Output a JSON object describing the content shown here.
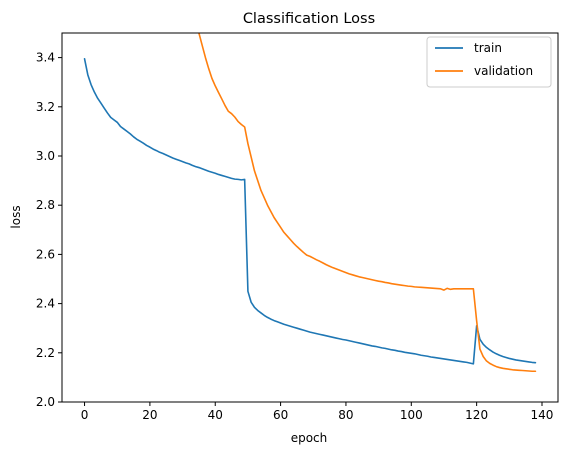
{
  "chart_data": {
    "type": "line",
    "title": "Classification Loss",
    "xlabel": "epoch",
    "ylabel": "loss",
    "xlim": [
      -6.9,
      144.9
    ],
    "ylim": [
      2.0,
      3.5
    ],
    "xticks": [
      0,
      20,
      40,
      60,
      80,
      100,
      120,
      140
    ],
    "xtick_labels": [
      "0",
      "20",
      "40",
      "60",
      "80",
      "100",
      "120",
      "140"
    ],
    "yticks": [
      2.0,
      2.2,
      2.4,
      2.6,
      2.8,
      3.0,
      3.2,
      3.4
    ],
    "ytick_labels": [
      "2.0",
      "2.2",
      "2.4",
      "2.6",
      "2.8",
      "3.0",
      "3.2",
      "3.4"
    ],
    "grid": false,
    "legend_position": "top-right",
    "series": [
      {
        "name": "train",
        "color": "#1f77b4",
        "points": [
          [
            0,
            3.395
          ],
          [
            1,
            3.33
          ],
          [
            2,
            3.29
          ],
          [
            3,
            3.26
          ],
          [
            4,
            3.235
          ],
          [
            5,
            3.215
          ],
          [
            6,
            3.195
          ],
          [
            7,
            3.175
          ],
          [
            8,
            3.157
          ],
          [
            9,
            3.147
          ],
          [
            10,
            3.137
          ],
          [
            11,
            3.12
          ],
          [
            12,
            3.11
          ],
          [
            13,
            3.1
          ],
          [
            14,
            3.09
          ],
          [
            15,
            3.078
          ],
          [
            16,
            3.068
          ],
          [
            17,
            3.06
          ],
          [
            18,
            3.052
          ],
          [
            19,
            3.043
          ],
          [
            20,
            3.036
          ],
          [
            21,
            3.028
          ],
          [
            22,
            3.022
          ],
          [
            23,
            3.015
          ],
          [
            24,
            3.01
          ],
          [
            25,
            3.004
          ],
          [
            26,
            2.998
          ],
          [
            27,
            2.992
          ],
          [
            28,
            2.987
          ],
          [
            29,
            2.982
          ],
          [
            30,
            2.977
          ],
          [
            31,
            2.972
          ],
          [
            32,
            2.968
          ],
          [
            33,
            2.962
          ],
          [
            34,
            2.957
          ],
          [
            35,
            2.953
          ],
          [
            36,
            2.948
          ],
          [
            37,
            2.943
          ],
          [
            38,
            2.938
          ],
          [
            39,
            2.934
          ],
          [
            40,
            2.93
          ],
          [
            41,
            2.925
          ],
          [
            42,
            2.921
          ],
          [
            43,
            2.917
          ],
          [
            44,
            2.913
          ],
          [
            45,
            2.909
          ],
          [
            46,
            2.906
          ],
          [
            47,
            2.905
          ],
          [
            48,
            2.903
          ],
          [
            49,
            2.905
          ],
          [
            50,
            2.45
          ],
          [
            51,
            2.405
          ],
          [
            52,
            2.385
          ],
          [
            53,
            2.372
          ],
          [
            54,
            2.362
          ],
          [
            55,
            2.352
          ],
          [
            56,
            2.344
          ],
          [
            57,
            2.337
          ],
          [
            58,
            2.331
          ],
          [
            59,
            2.326
          ],
          [
            60,
            2.321
          ],
          [
            61,
            2.316
          ],
          [
            62,
            2.312
          ],
          [
            63,
            2.308
          ],
          [
            64,
            2.304
          ],
          [
            65,
            2.3
          ],
          [
            66,
            2.296
          ],
          [
            67,
            2.292
          ],
          [
            68,
            2.288
          ],
          [
            69,
            2.284
          ],
          [
            70,
            2.281
          ],
          [
            71,
            2.278
          ],
          [
            72,
            2.275
          ],
          [
            73,
            2.272
          ],
          [
            74,
            2.269
          ],
          [
            75,
            2.266
          ],
          [
            76,
            2.263
          ],
          [
            77,
            2.26
          ],
          [
            78,
            2.257
          ],
          [
            79,
            2.254
          ],
          [
            80,
            2.252
          ],
          [
            81,
            2.249
          ],
          [
            82,
            2.246
          ],
          [
            83,
            2.243
          ],
          [
            84,
            2.24
          ],
          [
            85,
            2.237
          ],
          [
            86,
            2.234
          ],
          [
            87,
            2.231
          ],
          [
            88,
            2.228
          ],
          [
            89,
            2.226
          ],
          [
            90,
            2.223
          ],
          [
            91,
            2.22
          ],
          [
            92,
            2.218
          ],
          [
            93,
            2.215
          ],
          [
            94,
            2.212
          ],
          [
            95,
            2.21
          ],
          [
            96,
            2.207
          ],
          [
            97,
            2.205
          ],
          [
            98,
            2.202
          ],
          [
            99,
            2.2
          ],
          [
            100,
            2.198
          ],
          [
            101,
            2.196
          ],
          [
            102,
            2.193
          ],
          [
            103,
            2.19
          ],
          [
            104,
            2.188
          ],
          [
            105,
            2.186
          ],
          [
            106,
            2.183
          ],
          [
            107,
            2.181
          ],
          [
            108,
            2.179
          ],
          [
            109,
            2.177
          ],
          [
            110,
            2.175
          ],
          [
            111,
            2.173
          ],
          [
            112,
            2.171
          ],
          [
            113,
            2.169
          ],
          [
            114,
            2.167
          ],
          [
            115,
            2.165
          ],
          [
            116,
            2.163
          ],
          [
            117,
            2.161
          ],
          [
            118,
            2.158
          ],
          [
            119,
            2.155
          ],
          [
            120,
            2.31
          ],
          [
            121,
            2.255
          ],
          [
            122,
            2.235
          ],
          [
            123,
            2.222
          ],
          [
            124,
            2.212
          ],
          [
            125,
            2.203
          ],
          [
            126,
            2.196
          ],
          [
            127,
            2.19
          ],
          [
            128,
            2.185
          ],
          [
            129,
            2.181
          ],
          [
            130,
            2.177
          ],
          [
            131,
            2.174
          ],
          [
            132,
            2.171
          ],
          [
            133,
            2.169
          ],
          [
            134,
            2.167
          ],
          [
            135,
            2.165
          ],
          [
            136,
            2.163
          ],
          [
            137,
            2.161
          ],
          [
            138,
            2.16
          ]
        ]
      },
      {
        "name": "validation",
        "color": "#ff7f0e",
        "points": [
          [
            35,
            3.5
          ],
          [
            36,
            3.45
          ],
          [
            37,
            3.4
          ],
          [
            38,
            3.355
          ],
          [
            39,
            3.315
          ],
          [
            40,
            3.285
          ],
          [
            41,
            3.258
          ],
          [
            42,
            3.232
          ],
          [
            43,
            3.205
          ],
          [
            44,
            3.182
          ],
          [
            45,
            3.172
          ],
          [
            46,
            3.158
          ],
          [
            47,
            3.14
          ],
          [
            48,
            3.128
          ],
          [
            49,
            3.118
          ],
          [
            50,
            3.05
          ],
          [
            51,
            2.995
          ],
          [
            52,
            2.94
          ],
          [
            53,
            2.9
          ],
          [
            54,
            2.86
          ],
          [
            55,
            2.83
          ],
          [
            56,
            2.8
          ],
          [
            57,
            2.775
          ],
          [
            58,
            2.75
          ],
          [
            59,
            2.73
          ],
          [
            60,
            2.71
          ],
          [
            61,
            2.69
          ],
          [
            62,
            2.675
          ],
          [
            63,
            2.66
          ],
          [
            64,
            2.645
          ],
          [
            65,
            2.632
          ],
          [
            66,
            2.62
          ],
          [
            67,
            2.608
          ],
          [
            68,
            2.597
          ],
          [
            69,
            2.592
          ],
          [
            70,
            2.585
          ],
          [
            71,
            2.578
          ],
          [
            72,
            2.572
          ],
          [
            73,
            2.565
          ],
          [
            74,
            2.558
          ],
          [
            75,
            2.552
          ],
          [
            76,
            2.546
          ],
          [
            77,
            2.541
          ],
          [
            78,
            2.536
          ],
          [
            79,
            2.531
          ],
          [
            80,
            2.526
          ],
          [
            81,
            2.521
          ],
          [
            82,
            2.517
          ],
          [
            83,
            2.513
          ],
          [
            84,
            2.509
          ],
          [
            85,
            2.506
          ],
          [
            86,
            2.503
          ],
          [
            87,
            2.5
          ],
          [
            88,
            2.497
          ],
          [
            89,
            2.494
          ],
          [
            90,
            2.491
          ],
          [
            91,
            2.489
          ],
          [
            92,
            2.486
          ],
          [
            93,
            2.484
          ],
          [
            94,
            2.481
          ],
          [
            95,
            2.479
          ],
          [
            96,
            2.477
          ],
          [
            97,
            2.475
          ],
          [
            98,
            2.473
          ],
          [
            99,
            2.471
          ],
          [
            100,
            2.47
          ],
          [
            101,
            2.468
          ],
          [
            102,
            2.467
          ],
          [
            103,
            2.466
          ],
          [
            104,
            2.465
          ],
          [
            105,
            2.464
          ],
          [
            106,
            2.463
          ],
          [
            107,
            2.462
          ],
          [
            108,
            2.461
          ],
          [
            109,
            2.46
          ],
          [
            110,
            2.455
          ],
          [
            111,
            2.462
          ],
          [
            112,
            2.458
          ],
          [
            113,
            2.46
          ],
          [
            114,
            2.46
          ],
          [
            115,
            2.46
          ],
          [
            116,
            2.46
          ],
          [
            117,
            2.46
          ],
          [
            118,
            2.46
          ],
          [
            119,
            2.46
          ],
          [
            120,
            2.33
          ],
          [
            121,
            2.215
          ],
          [
            122,
            2.185
          ],
          [
            123,
            2.167
          ],
          [
            124,
            2.157
          ],
          [
            125,
            2.15
          ],
          [
            126,
            2.144
          ],
          [
            127,
            2.14
          ],
          [
            128,
            2.137
          ],
          [
            129,
            2.135
          ],
          [
            130,
            2.133
          ],
          [
            131,
            2.131
          ],
          [
            132,
            2.13
          ],
          [
            133,
            2.129
          ],
          [
            134,
            2.128
          ],
          [
            135,
            2.127
          ],
          [
            136,
            2.126
          ],
          [
            137,
            2.125
          ],
          [
            138,
            2.125
          ]
        ]
      }
    ]
  }
}
